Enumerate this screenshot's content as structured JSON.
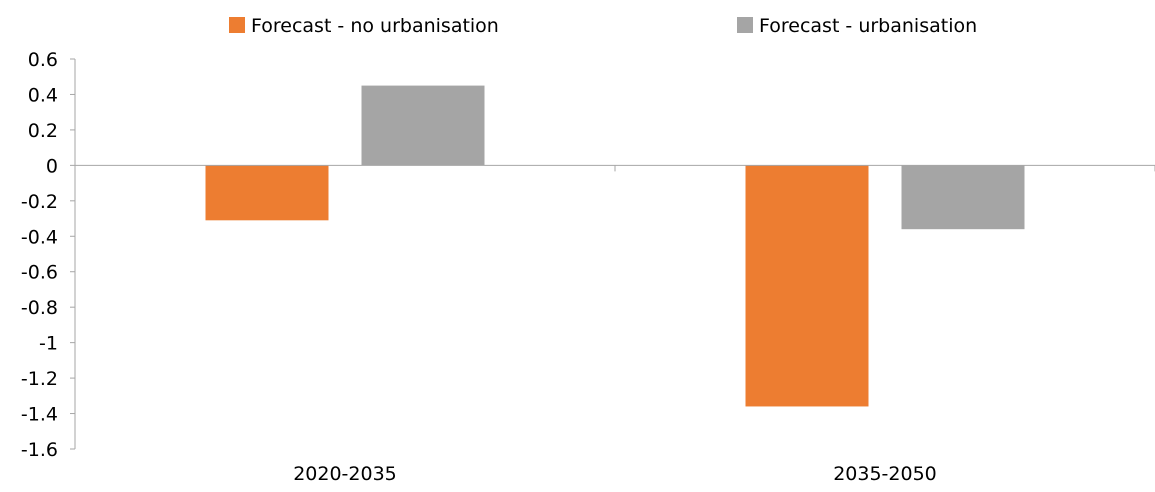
{
  "chart_data": {
    "type": "bar",
    "categories": [
      "2020-2035",
      "2035-2050"
    ],
    "series": [
      {
        "name": "Forecast - no urbanisation",
        "values": [
          -0.31,
          -1.36
        ],
        "color": "#ED7D31"
      },
      {
        "name": "Forecast - urbanisation",
        "values": [
          0.45,
          -0.36
        ],
        "color": "#A5A5A5"
      }
    ],
    "ylim": [
      -1.6,
      0.6
    ],
    "yticks": [
      "0.6",
      "0.4",
      "0.2",
      "0",
      "-0.2",
      "-0.4",
      "-0.6",
      "-0.8",
      "-1",
      "-1.2",
      "-1.4",
      "-1.6"
    ],
    "ytick_values": [
      0.6,
      0.4,
      0.2,
      0,
      -0.2,
      -0.4,
      -0.6,
      -0.8,
      -1,
      -1.2,
      -1.4,
      -1.6
    ],
    "grid": false,
    "legend_position": "top",
    "axis_color": "#A6A6A6"
  }
}
